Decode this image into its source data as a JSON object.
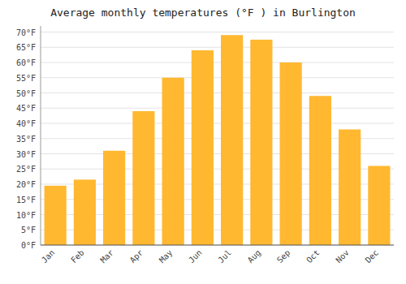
{
  "chart_data": {
    "type": "bar",
    "title": "Average monthly temperatures (°F ) in Burlington",
    "categories": [
      "Jan",
      "Feb",
      "Mar",
      "Apr",
      "May",
      "Jun",
      "Jul",
      "Aug",
      "Sep",
      "Oct",
      "Nov",
      "Dec"
    ],
    "values": [
      19.5,
      21.5,
      31.0,
      44.0,
      55.0,
      64.0,
      69.0,
      67.5,
      60.0,
      49.0,
      38.0,
      26.0
    ],
    "color": "#FFB830",
    "ylim": [
      0,
      72
    ],
    "yticks": [
      {
        "value": 0,
        "label": "0°F"
      },
      {
        "value": 5,
        "label": "5°F"
      },
      {
        "value": 10,
        "label": "10°F"
      },
      {
        "value": 15,
        "label": "15°F"
      },
      {
        "value": 20,
        "label": "20°F"
      },
      {
        "value": 25,
        "label": "25°F"
      },
      {
        "value": 30,
        "label": "30°F"
      },
      {
        "value": 35,
        "label": "35°F"
      },
      {
        "value": 40,
        "label": "40°F"
      },
      {
        "value": 45,
        "label": "45°F"
      },
      {
        "value": 50,
        "label": "50°F"
      },
      {
        "value": 55,
        "label": "55°F"
      },
      {
        "value": 60,
        "label": "60°F"
      },
      {
        "value": 65,
        "label": "65°F"
      },
      {
        "value": 70,
        "label": "70°F"
      }
    ],
    "grid": true
  }
}
